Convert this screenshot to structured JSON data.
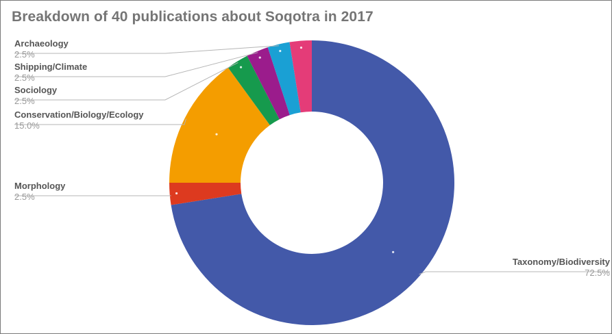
{
  "chart_data": {
    "type": "pie",
    "donut": true,
    "title": "Breakdown of 40 publications about Soqotra in 2017",
    "start_angle_deg": 0,
    "direction": "clockwise",
    "slices": [
      {
        "label": "Taxonomy/Biodiversity",
        "value": 72.5,
        "display": "72.5%",
        "color": "#4359a9"
      },
      {
        "label": "Morphology",
        "value": 2.5,
        "display": "2.5%",
        "color": "#dd3a1f"
      },
      {
        "label": "Conservation/Biology/Ecology",
        "value": 15.0,
        "display": "15.0%",
        "color": "#f49d00"
      },
      {
        "label": "Sociology",
        "value": 2.5,
        "display": "2.5%",
        "color": "#169a4d"
      },
      {
        "label": "Shipping/Climate",
        "value": 2.5,
        "display": "2.5%",
        "color": "#9b1c8c"
      },
      {
        "label": "Archaeology",
        "value": 2.5,
        "display": "2.5%",
        "color": "#1aa0d4"
      },
      {
        "label": "",
        "value": 2.5,
        "display": "",
        "color": "#e43c78"
      }
    ]
  }
}
